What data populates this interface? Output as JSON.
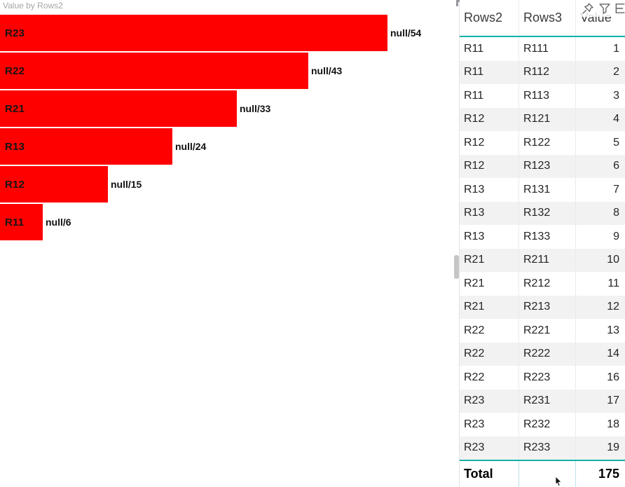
{
  "chart_data": {
    "type": "bar",
    "orientation": "horizontal",
    "title": "Value by Rows2",
    "categories": [
      "R23",
      "R22",
      "R21",
      "R13",
      "R12",
      "R11"
    ],
    "values": [
      54,
      43,
      33,
      24,
      15,
      6
    ],
    "data_labels": [
      "null/54",
      "null/43",
      "null/33",
      "null/24",
      "null/15",
      "null/6"
    ],
    "xlim": [
      0,
      54
    ],
    "bar_color": "#FF0000",
    "label_color": "#111111",
    "grid": false,
    "legend": false
  },
  "table": {
    "columns": [
      "Rows2",
      "Rows3",
      "Value"
    ],
    "rows": [
      [
        "R11",
        "R111",
        "1"
      ],
      [
        "R11",
        "R112",
        "2"
      ],
      [
        "R11",
        "R113",
        "3"
      ],
      [
        "R12",
        "R121",
        "4"
      ],
      [
        "R12",
        "R122",
        "5"
      ],
      [
        "R12",
        "R123",
        "6"
      ],
      [
        "R13",
        "R131",
        "7"
      ],
      [
        "R13",
        "R132",
        "8"
      ],
      [
        "R13",
        "R133",
        "9"
      ],
      [
        "R21",
        "R211",
        "10"
      ],
      [
        "R21",
        "R212",
        "11"
      ],
      [
        "R21",
        "R213",
        "12"
      ],
      [
        "R22",
        "R221",
        "13"
      ],
      [
        "R22",
        "R222",
        "14"
      ],
      [
        "R22",
        "R223",
        "16"
      ],
      [
        "R23",
        "R231",
        "17"
      ],
      [
        "R23",
        "R232",
        "18"
      ],
      [
        "R23",
        "R233",
        "19"
      ]
    ],
    "total": {
      "label": "Total",
      "value": "175"
    }
  },
  "visual_header": {
    "icons": [
      "pin-icon",
      "filter-icon",
      "more-options-icon"
    ]
  },
  "colors": {
    "accent_teal": "#12b0a7",
    "bar_red": "#FF0000",
    "alt_row": "#f3f2f2",
    "title_gray": "#a8a5a2"
  }
}
